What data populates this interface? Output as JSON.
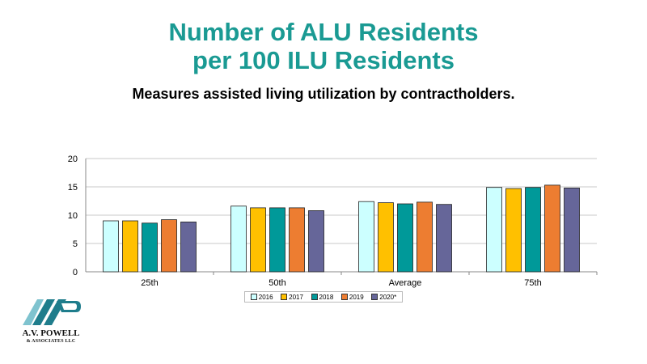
{
  "title_line1": "Number of ALU Residents",
  "title_line2": "per 100 ILU Residents",
  "subtitle": "Measures assisted living utilization by contractholders.",
  "logo": {
    "line1": "A.V. POWELL",
    "line2": "& ASSOCIATES LLC",
    "colors": {
      "primary": "#1f7d8c",
      "light": "#7fc3cf"
    }
  },
  "chart_data": {
    "type": "bar",
    "categories": [
      "25th",
      "50th",
      "Average",
      "75th"
    ],
    "series": [
      {
        "name": "2016",
        "color": "#ccffff",
        "values": [
          9.0,
          11.6,
          12.4,
          14.9
        ]
      },
      {
        "name": "2017",
        "color": "#ffc000",
        "values": [
          9.0,
          11.3,
          12.2,
          14.7
        ]
      },
      {
        "name": "2018",
        "color": "#009999",
        "values": [
          8.6,
          11.3,
          12.0,
          14.9
        ]
      },
      {
        "name": "2019",
        "color": "#ed7d31",
        "values": [
          9.2,
          11.3,
          12.3,
          15.3
        ]
      },
      {
        "name": "2020*",
        "color": "#666699",
        "values": [
          8.8,
          10.8,
          11.9,
          14.8
        ]
      }
    ],
    "ylim": [
      0,
      20
    ],
    "yticks": [
      0,
      5,
      10,
      15,
      20
    ],
    "grid": true,
    "legend_position": "bottom"
  }
}
